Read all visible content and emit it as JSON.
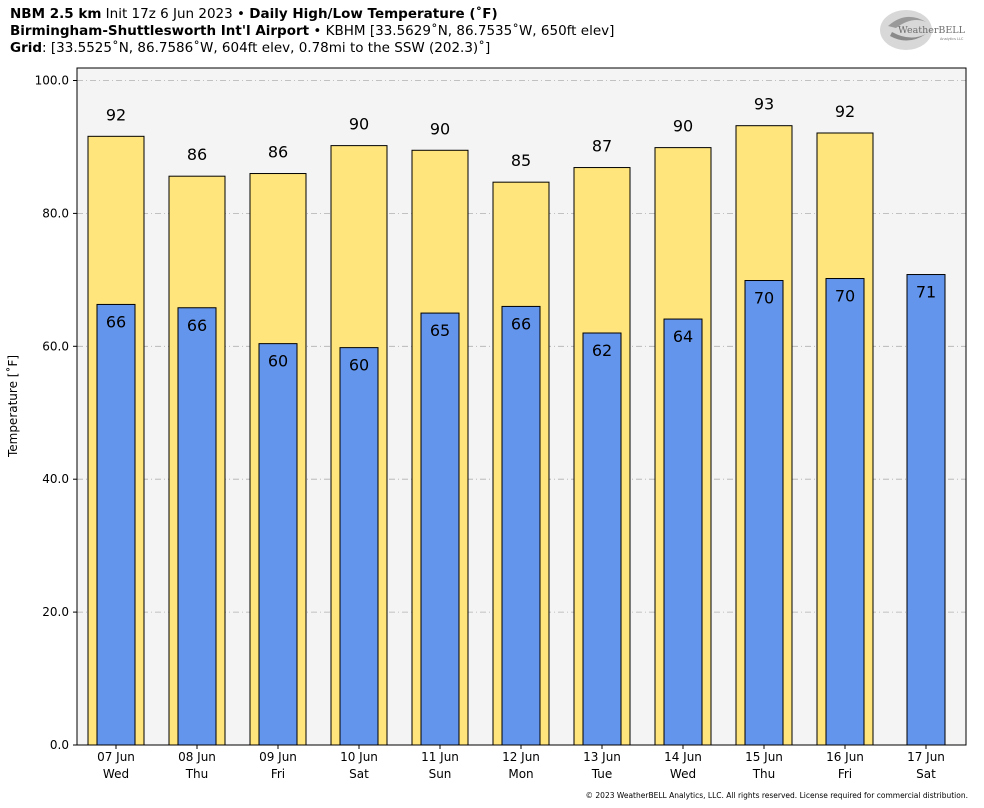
{
  "header": {
    "line1_bold": "NBM 2.5 km",
    "line1_init": " Init 17z 6 Jun 2023 • ",
    "line1_bold2": "Daily High/Low Temperature (˚F)",
    "line2_bold": "Birmingham-Shuttlesworth Int'l Airport",
    "line2_rest": " • KBHM [33.5629˚N, 86.7535˚W, 650ft elev]",
    "line3_bold": "Grid",
    "line3_rest": ": [33.5525˚N, 86.7586˚W, 604ft elev, 0.78mi to the SSW (202.3)˚]"
  },
  "logo": {
    "text": "WeatherBELL",
    "subtext": "Analytics LLC"
  },
  "copyright": "© 2023 WeatherBELL Analytics, LLC. All rights reserved. License required for commercial distribution.",
  "chart_data": {
    "type": "bar",
    "categories": [
      "07 Jun",
      "08 Jun",
      "09 Jun",
      "10 Jun",
      "11 Jun",
      "12 Jun",
      "13 Jun",
      "14 Jun",
      "15 Jun",
      "16 Jun",
      "17 Jun"
    ],
    "weekdays": [
      "Wed",
      "Thu",
      "Fri",
      "Sat",
      "Sun",
      "Mon",
      "Tue",
      "Wed",
      "Thu",
      "Fri",
      "Sat"
    ],
    "series": [
      {
        "values": [
          91.6,
          85.6,
          86.0,
          90.2,
          89.5,
          84.7,
          86.9,
          89.9,
          93.2,
          92.1,
          null
        ],
        "labels": [
          "92",
          "86",
          "86",
          "90",
          "90",
          "85",
          "87",
          "90",
          "93",
          "92",
          ""
        ],
        "color": "#ffe57c"
      },
      {
        "values": [
          66.3,
          65.8,
          60.4,
          59.8,
          65.0,
          66.0,
          62.0,
          64.1,
          69.9,
          70.2,
          70.8
        ],
        "labels": [
          "66",
          "66",
          "60",
          "60",
          "65",
          "66",
          "62",
          "64",
          "70",
          "70",
          "71"
        ],
        "color": "#6495ed"
      }
    ],
    "ylabel": "Temperature [˚F]",
    "ylim": [
      0,
      100
    ],
    "yticks": [
      "0.0",
      "20.0",
      "40.0",
      "60.0",
      "80.0",
      "100.0"
    ],
    "grid": true,
    "plot_background": "#f4f4f4"
  }
}
